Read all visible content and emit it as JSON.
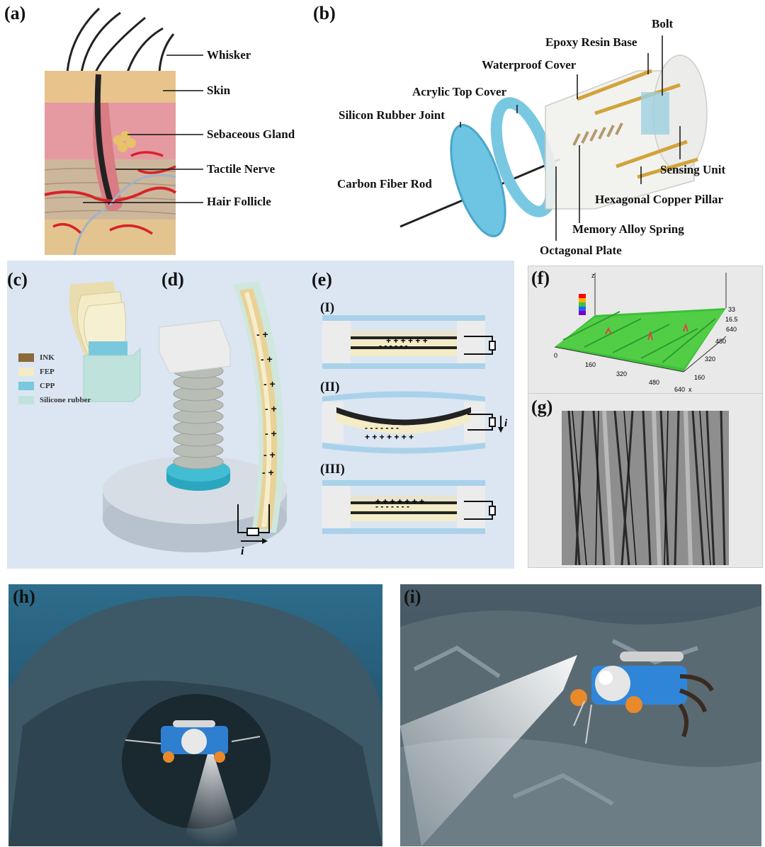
{
  "panels": {
    "a": {
      "label": "(a)",
      "annotations": [
        "Whisker",
        "Skin",
        "Sebaceous Gland",
        "Tactile Nerve",
        "Hair Follicle"
      ]
    },
    "b": {
      "label": "(b)",
      "annotations": [
        "Bolt",
        "Epoxy Resin Base",
        "Waterproof Cover",
        "Acrylic Top Cover",
        "Silicon Rubber Joint",
        "Carbon Fiber Rod",
        "Sensing Unit",
        "Hexagonal Copper Pillar",
        "Memory Alloy Spring",
        "Octagonal Plate"
      ]
    },
    "c": {
      "label": "(c)",
      "legend": [
        {
          "name": "INK",
          "color": "#8a6a3a"
        },
        {
          "name": "FEP",
          "color": "#f3ecc6"
        },
        {
          "name": "CPP",
          "color": "#79c8dd"
        },
        {
          "name": "Silicone rubber",
          "color": "#bfe3dc"
        }
      ]
    },
    "d": {
      "label": "(d)",
      "current_label": "i"
    },
    "e": {
      "label": "(e)",
      "states": [
        "(I)",
        "(II)",
        "(III)"
      ],
      "current_label": "i"
    },
    "f": {
      "label": "(f)",
      "x_ticks": [
        "0",
        "160",
        "320",
        "480",
        "640"
      ],
      "y_ticks": [
        "640",
        "480",
        "320",
        "160"
      ],
      "z_ticks": [
        "33",
        "16.5"
      ],
      "x_axis": "x",
      "z_axis": "z"
    },
    "g": {
      "label": "(g)"
    },
    "h": {
      "label": "(h)"
    },
    "i": {
      "label": "(i)"
    }
  },
  "colors": {
    "panel_bg": "#dbe6f2",
    "skin": "#e8c48c",
    "dermis": "#e49aa0",
    "vessels": "#d8232a",
    "water": "#2e5a78"
  }
}
